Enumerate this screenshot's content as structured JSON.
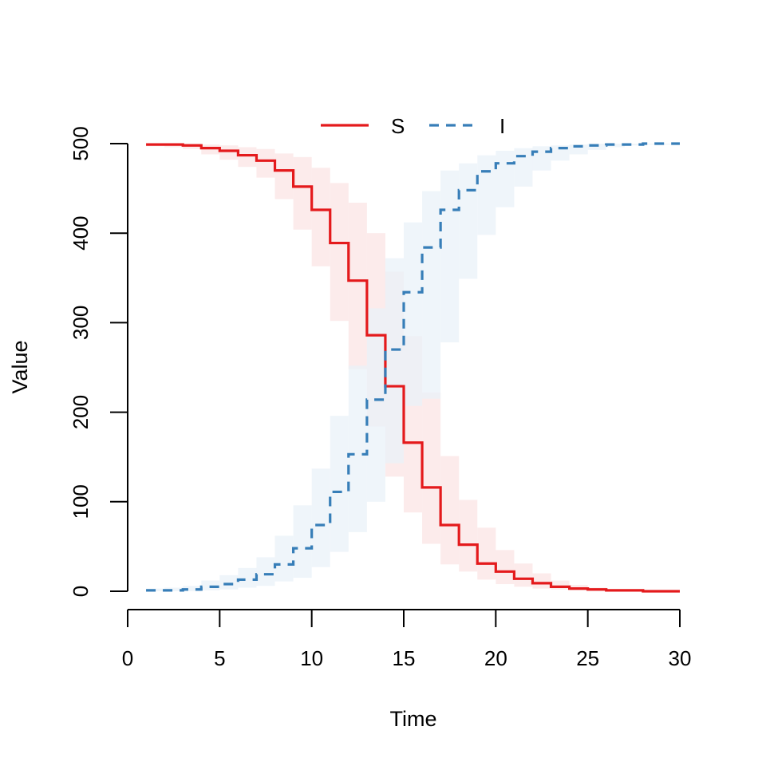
{
  "chart_data": {
    "type": "line",
    "xlabel": "Time",
    "ylabel": "Value",
    "xlim": [
      0,
      30
    ],
    "ylim": [
      0,
      500
    ],
    "x_ticks": [
      0,
      5,
      10,
      15,
      20,
      25,
      30
    ],
    "y_ticks": [
      0,
      100,
      200,
      300,
      400,
      500
    ],
    "grid": false,
    "legend_position": "top-center",
    "x": [
      1,
      2,
      3,
      4,
      5,
      6,
      7,
      8,
      9,
      10,
      11,
      12,
      13,
      14,
      15,
      16,
      17,
      18,
      19,
      20,
      21,
      22,
      23,
      24,
      25,
      26,
      27,
      28,
      29,
      30
    ],
    "series": [
      {
        "name": "S",
        "color": "#e41a1c",
        "band_color": "#fbe4e4",
        "line_style": "solid",
        "values": [
          499,
          499,
          498,
          495,
          492,
          487,
          481,
          470,
          452,
          426,
          389,
          347,
          286,
          229,
          166,
          116,
          74,
          52,
          31,
          22,
          14,
          9,
          5,
          3,
          2,
          1,
          1,
          0,
          0,
          0
        ],
        "lower": [
          497,
          496,
          494,
          488,
          482,
          474,
          462,
          438,
          404,
          363,
          302,
          248,
          184,
          128,
          88,
          53,
          30,
          22,
          13,
          8,
          5,
          3,
          2,
          1,
          1,
          0,
          0,
          0,
          0,
          0
        ],
        "upper": [
          500,
          500,
          500,
          499,
          498,
          496,
          494,
          489,
          485,
          473,
          456,
          434,
          400,
          357,
          285,
          222,
          151,
          102,
          71,
          46,
          31,
          20,
          12,
          7,
          4,
          2,
          1,
          1,
          0,
          0
        ]
      },
      {
        "name": "I",
        "color": "#377eb8",
        "band_color": "#eaf1f8",
        "line_style": "dashed",
        "values": [
          1,
          1,
          2,
          5,
          8,
          13,
          19,
          30,
          48,
          74,
          111,
          153,
          214,
          270,
          334,
          384,
          426,
          448,
          469,
          478,
          486,
          491,
          495,
          497,
          498,
          499,
          499,
          500,
          500,
          500
        ],
        "lower": [
          0,
          0,
          0,
          1,
          2,
          4,
          6,
          11,
          15,
          27,
          44,
          66,
          100,
          143,
          207,
          215,
          278,
          349,
          398,
          429,
          452,
          470,
          481,
          488,
          493,
          496,
          498,
          499,
          499,
          500
        ],
        "upper": [
          3,
          4,
          6,
          12,
          18,
          26,
          38,
          62,
          96,
          137,
          196,
          252,
          316,
          372,
          412,
          447,
          470,
          478,
          487,
          492,
          495,
          497,
          498,
          499,
          500,
          500,
          500,
          500,
          500,
          500
        ]
      }
    ]
  }
}
